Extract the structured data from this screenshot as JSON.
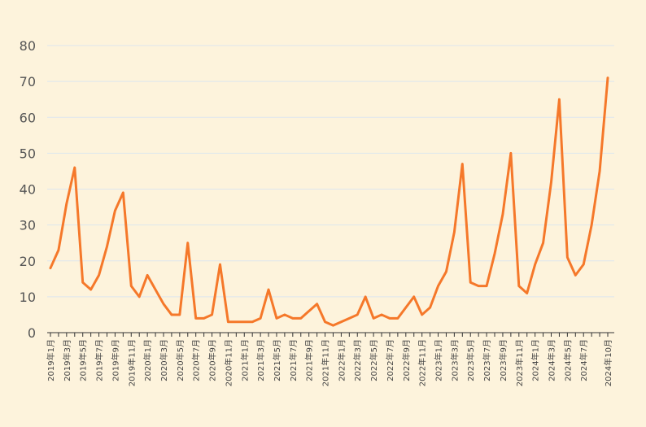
{
  "chart_data": {
    "type": "line",
    "title": "",
    "xlabel": "",
    "ylabel": "",
    "ylim": [
      0,
      80
    ],
    "yticks": [
      0,
      10,
      20,
      30,
      40,
      50,
      60,
      70,
      80
    ],
    "grid": true,
    "legend": "none",
    "x": [
      "2019年1月",
      "2019年2月",
      "2019年3月",
      "2019年4月",
      "2019年5月",
      "2019年6月",
      "2019年7月",
      "2019年8月",
      "2019年9月",
      "2019年10月",
      "2019年11月",
      "2019年12月",
      "2020年1月",
      "2020年2月",
      "2020年3月",
      "2020年4月",
      "2020年5月",
      "2020年6月",
      "2020年7月",
      "2020年8月",
      "2020年9月",
      "2020年10月",
      "2020年11月",
      "2020年12月",
      "2021年1月",
      "2021年2月",
      "2021年3月",
      "2021年4月",
      "2021年5月",
      "2021年6月",
      "2021年7月",
      "2021年8月",
      "2021年9月",
      "2021年10月",
      "2021年11月",
      "2021年12月",
      "2022年1月",
      "2022年2月",
      "2022年3月",
      "2022年4月",
      "2022年5月",
      "2022年6月",
      "2022年7月",
      "2022年8月",
      "2022年9月",
      "2022年10月",
      "2022年11月",
      "2022年12月",
      "2023年1月",
      "2023年2月",
      "2023年3月",
      "2023年4月",
      "2023年5月",
      "2023年6月",
      "2023年7月",
      "2023年8月",
      "2023年9月",
      "2023年10月",
      "2023年11月",
      "2023年12月",
      "2024年1月",
      "2024年2月",
      "2024年3月",
      "2024年4月",
      "2024年5月",
      "2024年6月",
      "2024年7月",
      "2024年8月",
      "2024年9月",
      "2024年10月"
    ],
    "xtick_labels": [
      "2019年1月",
      "2019年3月",
      "2019年5月",
      "2019年7月",
      "2019年9月",
      "2019年11月",
      "2020年1月",
      "2020年3月",
      "2020年5月",
      "2020年7月",
      "2020年9月",
      "2020年11月",
      "2021年1月",
      "2021年3月",
      "2021年5月",
      "2021年7月",
      "2021年9月",
      "2021年11月",
      "2022年1月",
      "2022年3月",
      "2022年5月",
      "2022年7月",
      "2022年9月",
      "2022年11月",
      "2023年1月",
      "2023年3月",
      "2023年5月",
      "2023年7月",
      "2023年9月",
      "2023年11月",
      "2024年1月",
      "2024年3月",
      "2024年5月",
      "2024年7月",
      "2024年10月"
    ],
    "series": [
      {
        "color": "#f5782a",
        "values": [
          18,
          23,
          36,
          46,
          14,
          12,
          16,
          24,
          34,
          39,
          13,
          10,
          16,
          12,
          8,
          5,
          5,
          25,
          4,
          4,
          5,
          19,
          3,
          3,
          3,
          3,
          4,
          12,
          4,
          5,
          4,
          4,
          6,
          8,
          3,
          2,
          3,
          4,
          5,
          10,
          4,
          5,
          4,
          4,
          7,
          10,
          5,
          7,
          13,
          17,
          28,
          47,
          14,
          13,
          13,
          22,
          33,
          50,
          13,
          11,
          19,
          25,
          42,
          65,
          21,
          16,
          19,
          30,
          45,
          71
        ]
      }
    ],
    "colors": {
      "background": "#fdf3dc",
      "grid": "#dde6ee",
      "line": "#f5782a",
      "axis": "#333333"
    }
  }
}
